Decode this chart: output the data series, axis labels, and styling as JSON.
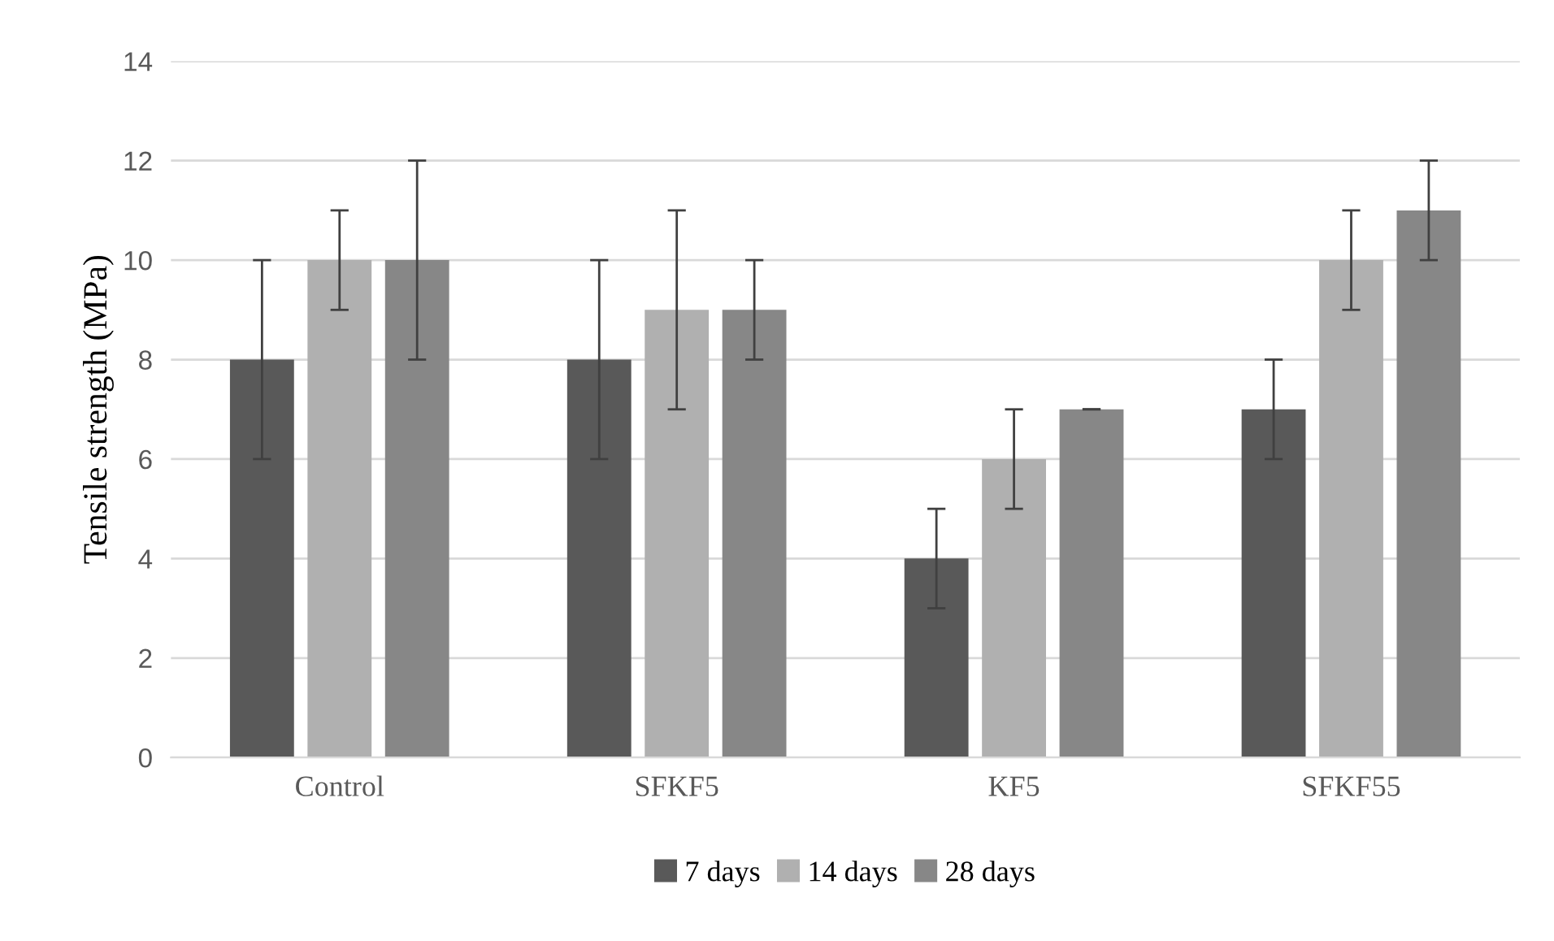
{
  "chart_data": {
    "type": "bar",
    "ylabel": "Tensile strength (MPa)",
    "categories": [
      "Control",
      "SFKF5",
      "KF5",
      "SFKF55"
    ],
    "series": [
      {
        "name": "7 days",
        "color": "#595959",
        "values": [
          8,
          8,
          4,
          7
        ],
        "errors": [
          2,
          2,
          1,
          1
        ]
      },
      {
        "name": "14 days",
        "color": "#b0b0b0",
        "values": [
          10,
          9,
          6,
          10
        ],
        "errors": [
          1,
          2,
          1,
          1
        ]
      },
      {
        "name": "28 days",
        "color": "#878787",
        "values": [
          10,
          9,
          7,
          11
        ],
        "errors": [
          2,
          1,
          0,
          1
        ]
      }
    ],
    "ylim": [
      0,
      14
    ],
    "yticks": [
      0,
      2,
      4,
      6,
      8,
      10,
      12,
      14
    ],
    "grid": "y",
    "legend": "bottom"
  }
}
